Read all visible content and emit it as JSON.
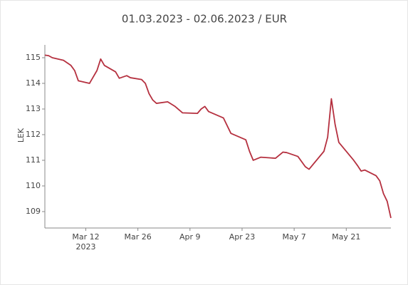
{
  "chart_data": {
    "type": "line",
    "title": "01.03.2023 - 02.06.2023 / EUR",
    "y_label": "LEK",
    "x": [
      "2023-03-01",
      "2023-03-02",
      "2023-03-03",
      "2023-03-06",
      "2023-03-08",
      "2023-03-09",
      "2023-03-10",
      "2023-03-13",
      "2023-03-15",
      "2023-03-16",
      "2023-03-17",
      "2023-03-20",
      "2023-03-21",
      "2023-03-23",
      "2023-03-24",
      "2023-03-27",
      "2023-03-28",
      "2023-03-29",
      "2023-03-30",
      "2023-03-31",
      "2023-04-03",
      "2023-04-05",
      "2023-04-07",
      "2023-04-11",
      "2023-04-12",
      "2023-04-13",
      "2023-04-14",
      "2023-04-18",
      "2023-04-20",
      "2023-04-24",
      "2023-04-25",
      "2023-04-26",
      "2023-04-28",
      "2023-05-02",
      "2023-05-04",
      "2023-05-05",
      "2023-05-08",
      "2023-05-10",
      "2023-05-11",
      "2023-05-15",
      "2023-05-16",
      "2023-05-17",
      "2023-05-18",
      "2023-05-19",
      "2023-05-23",
      "2023-05-24",
      "2023-05-25",
      "2023-05-26",
      "2023-05-29",
      "2023-05-30",
      "2023-05-31",
      "2023-06-01",
      "2023-06-02"
    ],
    "series": [
      {
        "color": "#b5303f",
        "values": [
          115.1,
          115.08,
          115.0,
          114.9,
          114.7,
          114.5,
          114.1,
          114.0,
          114.5,
          114.95,
          114.7,
          114.45,
          114.2,
          114.3,
          114.22,
          114.15,
          114.0,
          113.6,
          113.35,
          113.22,
          113.28,
          113.1,
          112.85,
          112.83,
          113.0,
          113.1,
          112.9,
          112.65,
          112.05,
          111.8,
          111.35,
          111.0,
          111.12,
          111.08,
          111.32,
          111.3,
          111.15,
          110.75,
          110.65,
          111.35,
          111.9,
          113.4,
          112.4,
          111.7,
          111.0,
          110.8,
          110.58,
          110.62,
          110.4,
          110.2,
          109.7,
          109.4,
          108.75
        ]
      }
    ],
    "xlim": [
      "2023-03-01",
      "2023-06-02"
    ],
    "xticks": [
      {
        "value": "2023-03-12",
        "label": "Mar 12"
      },
      {
        "value": "2023-03-26",
        "label": "Mar 26"
      },
      {
        "value": "2023-04-09",
        "label": "Apr 9"
      },
      {
        "value": "2023-04-23",
        "label": "Apr 23"
      },
      {
        "value": "2023-05-07",
        "label": "May 7"
      },
      {
        "value": "2023-05-21",
        "label": "May 21"
      }
    ],
    "x_year_label": "2023",
    "ylim": [
      108.36,
      115.5
    ],
    "yticks": [
      109,
      110,
      111,
      112,
      113,
      114,
      115
    ]
  }
}
